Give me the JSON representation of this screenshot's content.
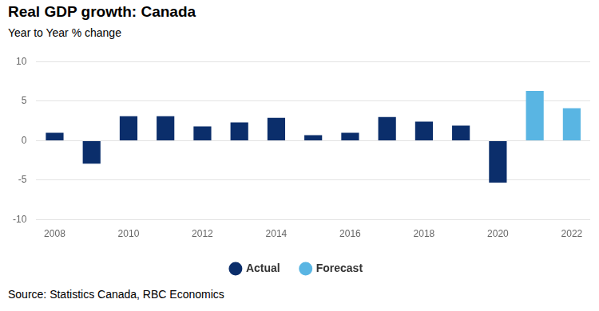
{
  "chart_data": {
    "type": "bar",
    "title": "Real GDP growth: Canada",
    "subtitle": "Year to Year % change",
    "source": "Source: Statistics Canada, RBC Economics",
    "categories": [
      "2008",
      null,
      "2010",
      null,
      "2012",
      null,
      "2014",
      null,
      "2016",
      null,
      "2018",
      null,
      "2020",
      null,
      "2022"
    ],
    "series": [
      {
        "name": "Actual",
        "color": "#0b2e6b",
        "values": [
          1.0,
          -2.9,
          3.1,
          3.1,
          1.8,
          2.3,
          2.9,
          0.7,
          1.0,
          3.0,
          2.4,
          1.9,
          -5.3,
          null,
          null
        ]
      },
      {
        "name": "Forecast",
        "color": "#59b5e3",
        "values": [
          null,
          null,
          null,
          null,
          null,
          null,
          null,
          null,
          null,
          null,
          null,
          null,
          null,
          6.3,
          4.1
        ]
      }
    ],
    "ylim": [
      -10,
      10
    ],
    "yticks": [
      -10,
      -5,
      0,
      5,
      10
    ],
    "grid": true,
    "legend": "bottom"
  }
}
